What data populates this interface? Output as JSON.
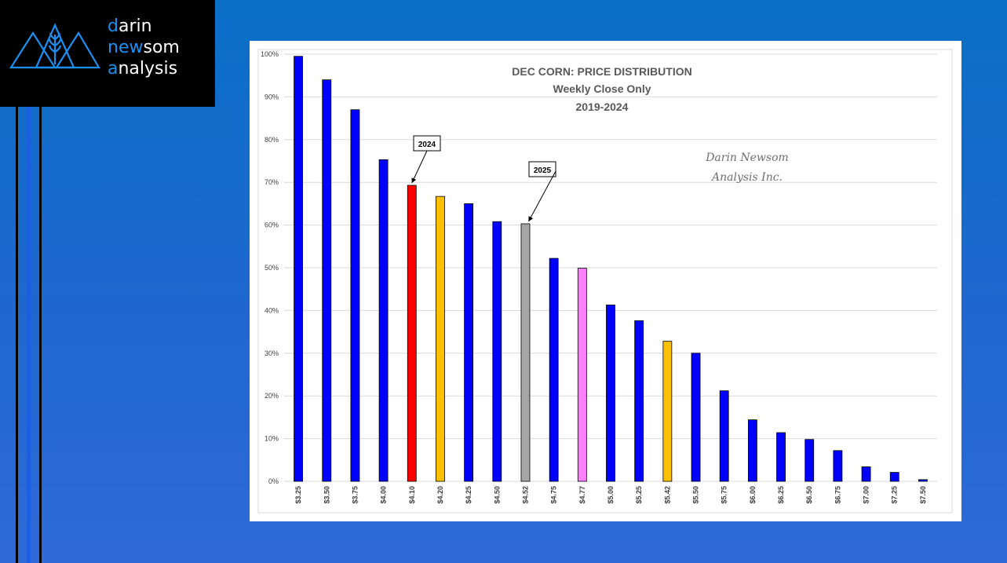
{
  "brand": {
    "line1_hl": "d",
    "line1_rest": "arin",
    "line2_hl": "ne",
    "line2_mid": "w",
    "line2_rest": "som",
    "line3_hl": "a",
    "line3_rest": "nalysis"
  },
  "chart_data": {
    "type": "bar",
    "title": "DEC CORN: PRICE DISTRIBUTION",
    "subtitle": "Weekly Close Only",
    "subtitle2": "2019-2024",
    "watermark_line1": "Darin Newsom",
    "watermark_line2": "Analysis Inc.",
    "categories": [
      "$3.25",
      "$3.50",
      "$3.75",
      "$4.00",
      "$4.10",
      "$4.20",
      "$4.25",
      "$4.50",
      "$4.52",
      "$4.75",
      "$4.77",
      "$5.00",
      "$5.25",
      "$5.42",
      "$5.50",
      "$5.75",
      "$6.00",
      "$6.25",
      "$6.50",
      "$6.75",
      "$7.00",
      "$7.25",
      "$7.50"
    ],
    "values": [
      99.5,
      94,
      87,
      75.3,
      69.3,
      66.7,
      65,
      60.8,
      60.3,
      52.2,
      49.9,
      41.3,
      37.6,
      32.8,
      30,
      21.2,
      14.4,
      11.4,
      9.8,
      7.2,
      3.4,
      2.1,
      0.4
    ],
    "colors": [
      "#0000ff",
      "#0000ff",
      "#0000ff",
      "#0000ff",
      "#ff0000",
      "#ffc000",
      "#0000ff",
      "#0000ff",
      "#a6a6a6",
      "#0000ff",
      "#ff80ff",
      "#0000ff",
      "#0000ff",
      "#ffc000",
      "#0000ff",
      "#0000ff",
      "#0000ff",
      "#0000ff",
      "#0000ff",
      "#0000ff",
      "#0000ff",
      "#0000ff",
      "#0000ff"
    ],
    "ylim": [
      0,
      100
    ],
    "yticks": [
      "0%",
      "10%",
      "20%",
      "30%",
      "40%",
      "50%",
      "60%",
      "70%",
      "80%",
      "90%",
      "100%"
    ],
    "grid": true,
    "annotations": [
      {
        "label": "2024",
        "category_index": 4
      },
      {
        "label": "2025",
        "category_index": 8
      }
    ]
  }
}
